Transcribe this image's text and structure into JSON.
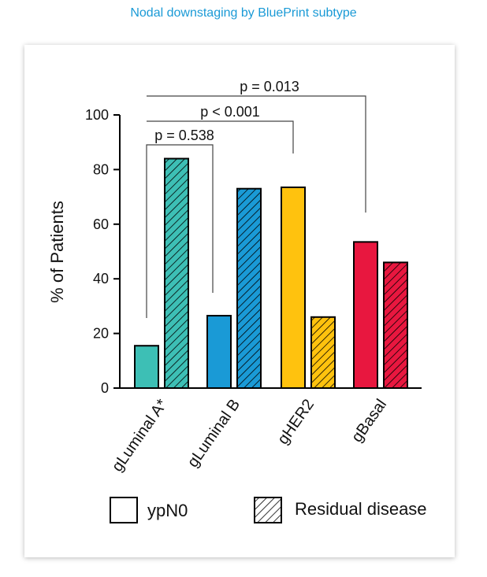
{
  "header": {
    "title": "Nodal downstaging by BluePrint subtype"
  },
  "chart_data": {
    "type": "bar",
    "title": "Nodal downstaging by BluePrint subtype",
    "xlabel": "",
    "ylabel": "% of Patients",
    "ylim": [
      0,
      100
    ],
    "yticks": [
      "0",
      "20",
      "40",
      "60",
      "80",
      "100"
    ],
    "categories": [
      "gLuminal A*",
      "gLuminal B",
      "gHER2",
      "gBasal"
    ],
    "category_colors": [
      "#3dbfb5",
      "#1a9ad6",
      "#ffc20e",
      "#e8173f"
    ],
    "series": [
      {
        "name": "ypN0",
        "pattern": "solid",
        "values": [
          15.5,
          26.5,
          73.5,
          53.5
        ]
      },
      {
        "name": "Residual disease",
        "pattern": "hatched",
        "values": [
          84,
          73,
          26,
          46
        ]
      }
    ],
    "annotations": [
      {
        "text": "p = 0.538",
        "from": "gLuminal A*",
        "to": "gLuminal B"
      },
      {
        "text": "p < 0.001",
        "from": "gLuminal A*",
        "to": "gHER2"
      },
      {
        "text": "p = 0.013",
        "from": "gLuminal A*",
        "to": "gBasal"
      }
    ],
    "legend": {
      "position": "bottom",
      "items": [
        "ypN0",
        "Residual disease"
      ]
    },
    "grid": false
  }
}
